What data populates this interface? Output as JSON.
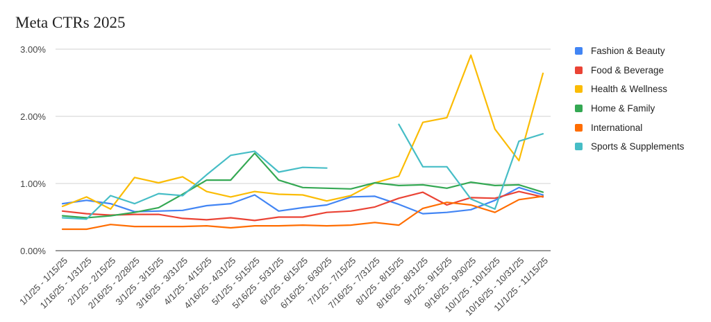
{
  "chart_data": {
    "type": "line",
    "title": "Meta CTRs 2025",
    "xlabel": "",
    "ylabel": "",
    "ylim": [
      0,
      3
    ],
    "y_ticks": [
      "0.00%",
      "1.00%",
      "2.00%",
      "3.00%"
    ],
    "grid": true,
    "legend_position": "right",
    "categories": [
      "1/1/25 - 1/15/25",
      "1/16/25 - 1/31/25",
      "2/1/25 - 2/15/25",
      "2/16/25 - 2/28/25",
      "3/1/25 - 3/15/25",
      "3/16/25 - 3/31/25",
      "4/1/25 - 4/15/25",
      "4/16/25 - 4/31/25",
      "5/1/25 - 5/15/25",
      "5/16/25 - 5/31/25",
      "6/1/25 - 6/15/25",
      "6/16/25 - 6/30/25",
      "7/1/25 - 7/15/25",
      "7/16/25 - 7/31/25",
      "8/1/25 - 8/15/25",
      "8/16/25 - 8/31/25",
      "9/1/25 - 9/15/25",
      "9/16/25 - 9/30/25",
      "10/1/25 - 10/15/25",
      "10/16/25 - 10/31/25",
      "11/1/25 - 11/15/25"
    ],
    "series": [
      {
        "name": "Fashion & Beauty",
        "color": "#4285F4",
        "values": [
          0.7,
          0.75,
          0.7,
          0.58,
          0.59,
          0.6,
          0.67,
          0.7,
          0.83,
          0.59,
          0.64,
          0.68,
          0.8,
          0.81,
          0.69,
          0.55,
          0.57,
          0.61,
          0.75,
          0.94,
          0.83
        ]
      },
      {
        "name": "Food & Beverage",
        "color": "#EA4335",
        "values": [
          0.59,
          0.55,
          0.53,
          0.54,
          0.54,
          0.48,
          0.46,
          0.49,
          0.45,
          0.5,
          0.5,
          0.57,
          0.59,
          0.65,
          0.78,
          0.87,
          0.68,
          0.79,
          0.78,
          0.88,
          0.8
        ]
      },
      {
        "name": "Health & Wellness",
        "color": "#FBBC04",
        "values": [
          0.66,
          0.8,
          0.62,
          1.09,
          1.01,
          1.1,
          0.88,
          0.8,
          0.88,
          0.84,
          0.83,
          0.74,
          0.82,
          1.01,
          1.11,
          1.91,
          1.98,
          2.91,
          1.81,
          1.34,
          2.64
        ]
      },
      {
        "name": "Home & Family",
        "color": "#34A853",
        "values": [
          0.52,
          0.49,
          0.52,
          0.57,
          0.64,
          0.84,
          1.05,
          1.05,
          1.45,
          1.05,
          0.94,
          0.93,
          0.92,
          1.01,
          0.97,
          0.98,
          0.93,
          1.02,
          0.97,
          0.98,
          0.87
        ]
      },
      {
        "name": "International",
        "color": "#FF6D01",
        "values": [
          0.32,
          0.32,
          0.39,
          0.36,
          0.36,
          0.36,
          0.37,
          0.34,
          0.37,
          0.37,
          0.38,
          0.37,
          0.38,
          0.42,
          0.38,
          0.63,
          0.72,
          0.68,
          0.57,
          0.76,
          0.81
        ]
      },
      {
        "name": "Sports & Supplements",
        "color": "#46BDC6",
        "values": [
          0.49,
          0.47,
          0.82,
          0.7,
          0.85,
          0.82,
          1.13,
          1.42,
          1.48,
          1.17,
          1.24,
          1.23,
          null,
          null,
          1.88,
          1.25,
          1.25,
          0.77,
          0.62,
          1.63,
          1.74
        ]
      }
    ]
  }
}
